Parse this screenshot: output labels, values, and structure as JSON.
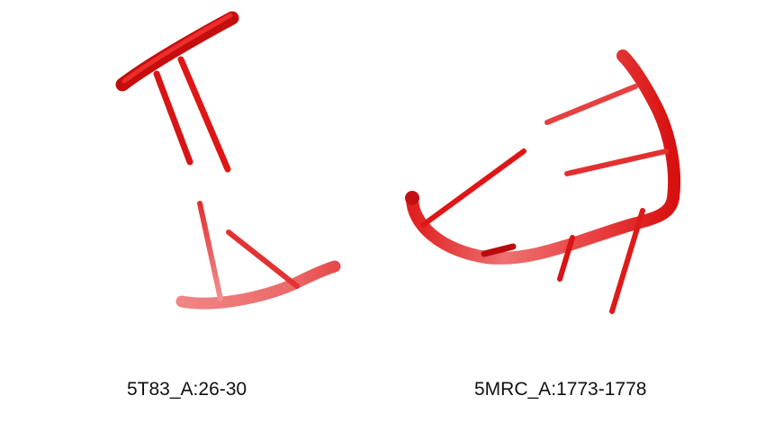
{
  "colors": {
    "backbone": "#e01010",
    "backbone_faded": "#ee7070",
    "base": "#e81818",
    "base_faded": "#ef7a7a",
    "background": "#ffffff"
  },
  "structures": [
    {
      "label": "5T83_A:26-30"
    },
    {
      "label": "5MRC_A:1773-1778"
    }
  ]
}
